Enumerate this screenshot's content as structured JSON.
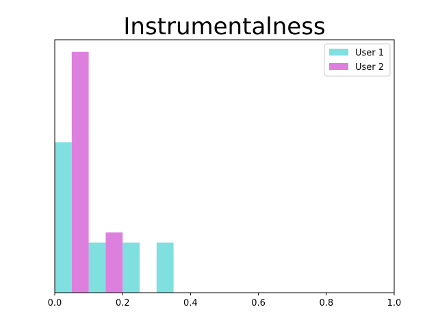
{
  "chart_data": {
    "type": "bar",
    "title": "Instrumentalness",
    "xlabel": "",
    "ylabel": "",
    "xlim": [
      0.0,
      1.0
    ],
    "ylim": [
      0,
      2.4
    ],
    "x_ticks": [
      "0.0",
      "0.2",
      "0.4",
      "0.6",
      "0.8",
      "1.0"
    ],
    "bin_width": 0.1,
    "bins": [
      0.0,
      0.1,
      0.2,
      0.3
    ],
    "series": [
      {
        "name": "User 1",
        "color": "#80dfdf",
        "values": [
          1.5,
          0.5,
          0.5,
          0.5
        ]
      },
      {
        "name": "User 2",
        "color": "#dd80dd",
        "values": [
          2.4,
          0.6,
          0,
          0
        ]
      }
    ],
    "legend_position": "top-right",
    "grid": false,
    "y_axis_visible": false
  }
}
